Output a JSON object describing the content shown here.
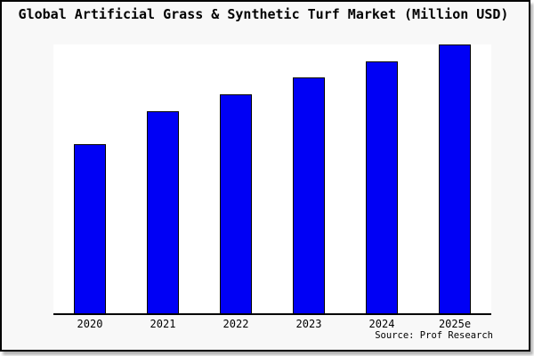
{
  "window": {
    "background_color": "#f8f8f8",
    "plot_background_color": "#ffffff",
    "border_color": "#000000"
  },
  "chart_data": {
    "type": "bar",
    "title": "Global Artificial Grass & Synthetic Turf Market (Million USD)",
    "categories": [
      "2020",
      "2021",
      "2022",
      "2023",
      "2024",
      "2025e"
    ],
    "values_pct_of_max": [
      62.9,
      75.2,
      81.5,
      87.7,
      93.7,
      100
    ],
    "xlabel": "",
    "ylabel": "",
    "y_axis": {
      "labels_visible": false,
      "gridlines": false,
      "note": "no numeric y scale shown; values read as bar heights relative to tallest bar (2025e = 100)"
    },
    "legend": "none",
    "bar_color": "#0000F5",
    "bar_border_color": "#000000",
    "source_label": "Source: Prof Research"
  }
}
